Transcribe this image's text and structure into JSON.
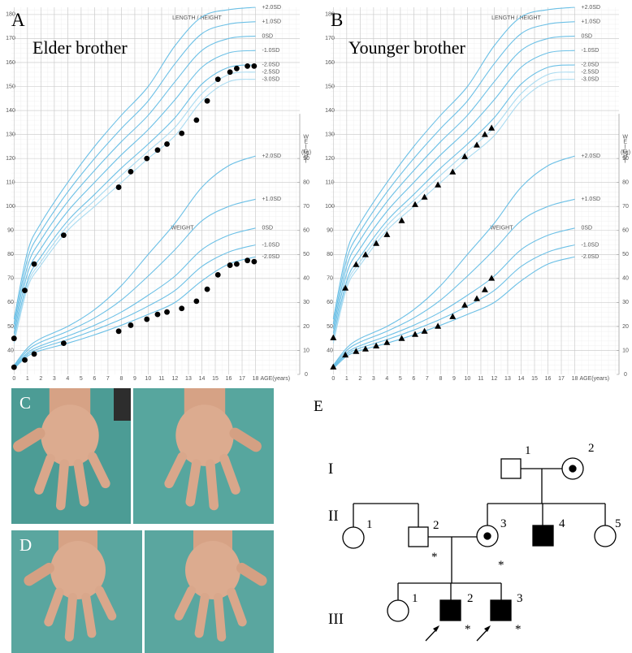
{
  "chart_data": [
    {
      "type": "line",
      "panel": "A",
      "title": "Elder brother",
      "xlabel": "AGE(years)",
      "height_label": "LENGTH / HEIGHT",
      "weight_label": "WEIGHT",
      "y2label": "WEIGHT",
      "y2unit": "(kg)",
      "xlim": [
        -0.2,
        21.3
      ],
      "xticks": [
        0,
        1,
        2,
        3,
        4,
        5,
        6,
        7,
        8,
        9,
        10,
        11,
        12,
        13,
        14,
        15,
        16,
        17,
        18
      ],
      "ylim": [
        30,
        183
      ],
      "yticks": [
        40,
        50,
        60,
        70,
        80,
        90,
        100,
        110,
        120,
        130,
        140,
        150,
        160,
        170,
        180
      ],
      "y2lim": [
        0,
        153
      ],
      "y2ticks": [
        0,
        10,
        20,
        30,
        40,
        50,
        60,
        70,
        80,
        90
      ],
      "grid": true,
      "curve_x": [
        0,
        1,
        2,
        4,
        6,
        8,
        10,
        12,
        14,
        16,
        18
      ],
      "series": [
        {
          "name": "+2.0SD",
          "axis": "y",
          "color": "#6cc0e6",
          "values": [
            53,
            81,
            93,
            110,
            125,
            138,
            150,
            167,
            179,
            182,
            183
          ]
        },
        {
          "name": "+1.0SD",
          "axis": "y",
          "color": "#6cc0e6",
          "values": [
            51,
            78,
            89.5,
            106,
            120,
            132.5,
            144,
            159.5,
            172,
            176,
            177
          ]
        },
        {
          "name": "0SD",
          "axis": "y",
          "color": "#6cc0e6",
          "values": [
            49,
            75,
            86,
            102,
            115,
            127,
            138,
            152,
            165,
            170,
            171
          ]
        },
        {
          "name": "-1.0SD",
          "axis": "y",
          "color": "#6cc0e6",
          "values": [
            47,
            72,
            82.5,
            98,
            110,
            121.5,
            132,
            144.5,
            158,
            164,
            165
          ]
        },
        {
          "name": "-2.0SD",
          "axis": "y",
          "color": "#6cc0e6",
          "values": [
            45,
            69,
            79,
            94,
            105,
            116,
            126,
            137,
            151,
            158,
            159
          ]
        },
        {
          "name": "-2.5SD",
          "axis": "y",
          "color": "#a9dbf1",
          "values": [
            44,
            67.5,
            77,
            92,
            102.5,
            113,
            123,
            133,
            147,
            155,
            156
          ]
        },
        {
          "name": "-3.0SD",
          "axis": "y",
          "color": "#a9dbf1",
          "values": [
            43,
            66,
            75.5,
            90,
            100,
            110,
            120,
            129.5,
            144,
            152,
            153
          ]
        },
        {
          "name": "+2.0SD",
          "axis": "y2",
          "color": "#6cc0e6",
          "values": [
            3.8,
            11,
            15,
            20,
            27,
            37,
            50,
            63,
            78,
            87,
            91
          ]
        },
        {
          "name": "+1.0SD",
          "axis": "y2",
          "color": "#6cc0e6",
          "values": [
            3.4,
            10,
            13.5,
            18,
            23.5,
            31,
            41,
            52,
            64,
            70,
            73
          ]
        },
        {
          "name": "0SD",
          "axis": "y2",
          "color": "#6cc0e6",
          "values": [
            3,
            9,
            12,
            16,
            20.5,
            26,
            33,
            41,
            52,
            58,
            61
          ]
        },
        {
          "name": "-1.0SD",
          "axis": "y2",
          "color": "#6cc0e6",
          "values": [
            2.7,
            8.3,
            11,
            14.5,
            18.5,
            23,
            28.5,
            35,
            45,
            51,
            54
          ]
        },
        {
          "name": "-2.0SD",
          "axis": "y2",
          "color": "#6cc0e6",
          "values": [
            2.4,
            7.6,
            10,
            13,
            16.5,
            20.5,
            25,
            30,
            39,
            46,
            49
          ]
        }
      ],
      "points": {
        "marker": "circle",
        "color": "#000000",
        "x": [
          0,
          0.8,
          1.5,
          3.7,
          7.8,
          8.7,
          9.9,
          10.7,
          11.4,
          12.5,
          13.6,
          14.4,
          15.2,
          16.1,
          16.6,
          17.4,
          17.9
        ],
        "height": [
          45,
          65,
          76,
          88,
          108,
          114.5,
          120,
          123.5,
          126,
          130.5,
          136,
          144,
          153,
          156,
          157.5,
          158.5,
          158.5
        ],
        "weight": [
          3,
          6,
          8.5,
          13,
          18,
          20.5,
          23,
          25,
          26,
          27.5,
          30.5,
          35.5,
          41.5,
          45.5,
          46,
          47.5,
          47
        ]
      }
    },
    {
      "type": "line",
      "panel": "B",
      "title": "Younger brother",
      "xlabel": "AGE(years)",
      "height_label": "LENGTH / HEIGHT",
      "weight_label": "WEIGHT",
      "y2label": "WEIGHT",
      "y2unit": "(kg)",
      "xlim": [
        -0.2,
        21.3
      ],
      "xticks": [
        0,
        1,
        2,
        3,
        4,
        5,
        6,
        7,
        8,
        9,
        10,
        11,
        12,
        13,
        14,
        15,
        16,
        17,
        18
      ],
      "ylim": [
        30,
        183
      ],
      "yticks": [
        40,
        50,
        60,
        70,
        80,
        90,
        100,
        110,
        120,
        130,
        140,
        150,
        160,
        170,
        180
      ],
      "y2lim": [
        0,
        153
      ],
      "y2ticks": [
        0,
        10,
        20,
        30,
        40,
        50,
        60,
        70,
        80,
        90
      ],
      "grid": true,
      "curve_x": [
        0,
        1,
        2,
        4,
        6,
        8,
        10,
        12,
        14,
        16,
        18
      ],
      "series": [
        {
          "name": "+2.0SD",
          "axis": "y",
          "color": "#6cc0e6",
          "values": [
            53,
            81,
            93,
            110,
            125,
            138,
            150,
            167,
            179,
            182,
            183
          ]
        },
        {
          "name": "+1.0SD",
          "axis": "y",
          "color": "#6cc0e6",
          "values": [
            51,
            78,
            89.5,
            106,
            120,
            132.5,
            144,
            159.5,
            172,
            176,
            177
          ]
        },
        {
          "name": "0SD",
          "axis": "y",
          "color": "#6cc0e6",
          "values": [
            49,
            75,
            86,
            102,
            115,
            127,
            138,
            152,
            165,
            170,
            171
          ]
        },
        {
          "name": "-1.0SD",
          "axis": "y",
          "color": "#6cc0e6",
          "values": [
            47,
            72,
            82.5,
            98,
            110,
            121.5,
            132,
            144.5,
            158,
            164,
            165
          ]
        },
        {
          "name": "-2.0SD",
          "axis": "y",
          "color": "#6cc0e6",
          "values": [
            45,
            69,
            79,
            94,
            105,
            116,
            126,
            137,
            151,
            158,
            159
          ]
        },
        {
          "name": "-2.5SD",
          "axis": "y",
          "color": "#a9dbf1",
          "values": [
            44,
            67.5,
            77,
            92,
            102.5,
            113,
            123,
            133,
            147,
            155,
            156
          ]
        },
        {
          "name": "-3.0SD",
          "axis": "y",
          "color": "#a9dbf1",
          "values": [
            43,
            66,
            75.5,
            90,
            100,
            110,
            120,
            129.5,
            144,
            152,
            153
          ]
        },
        {
          "name": "+2.0SD",
          "axis": "y2",
          "color": "#6cc0e6",
          "values": [
            3.8,
            11,
            15,
            20,
            27,
            37,
            50,
            63,
            78,
            87,
            91
          ]
        },
        {
          "name": "+1.0SD",
          "axis": "y2",
          "color": "#6cc0e6",
          "values": [
            3.4,
            10,
            13.5,
            18,
            23.5,
            31,
            41,
            52,
            64,
            70,
            73
          ]
        },
        {
          "name": "0SD",
          "axis": "y2",
          "color": "#6cc0e6",
          "values": [
            3,
            9,
            12,
            16,
            20.5,
            26,
            33,
            41,
            52,
            58,
            61
          ]
        },
        {
          "name": "-1.0SD",
          "axis": "y2",
          "color": "#6cc0e6",
          "values": [
            2.7,
            8.3,
            11,
            14.5,
            18.5,
            23,
            28.5,
            35,
            45,
            51,
            54
          ]
        },
        {
          "name": "-2.0SD",
          "axis": "y2",
          "color": "#6cc0e6",
          "values": [
            2.4,
            7.6,
            10,
            13,
            16.5,
            20.5,
            25,
            30,
            39,
            46,
            49
          ]
        }
      ],
      "points": {
        "marker": "triangle",
        "color": "#000000",
        "x": [
          0,
          0.9,
          1.7,
          2.4,
          3.2,
          4.0,
          5.1,
          6.1,
          6.8,
          7.8,
          8.9,
          9.8,
          10.7,
          11.3,
          11.8
        ],
        "height": [
          45.2,
          65.9,
          75.7,
          79.8,
          84.5,
          88.2,
          94,
          100.7,
          103.8,
          108.9,
          114.3,
          120.7,
          125.5,
          129.9,
          132.6
        ],
        "weight": [
          3,
          8,
          9.5,
          10.5,
          11.8,
          13.2,
          14.9,
          16.6,
          17.9,
          20,
          24,
          28.8,
          31.5,
          35.2,
          40
        ]
      }
    }
  ],
  "photos": [
    {
      "label": "C"
    },
    {
      "label": "D"
    }
  ],
  "pedigree": {
    "label": "E",
    "generations": [
      "I",
      "II",
      "III"
    ],
    "members": [
      {
        "number": "1"
      },
      {
        "number": "2"
      },
      {
        "number": "1"
      },
      {
        "number": "2",
        "note": "*"
      },
      {
        "number": "3",
        "note": "*"
      },
      {
        "number": "4"
      },
      {
        "number": "5"
      },
      {
        "number": "1"
      },
      {
        "number": "2",
        "note": "*"
      },
      {
        "number": "3",
        "note": "*"
      }
    ]
  }
}
